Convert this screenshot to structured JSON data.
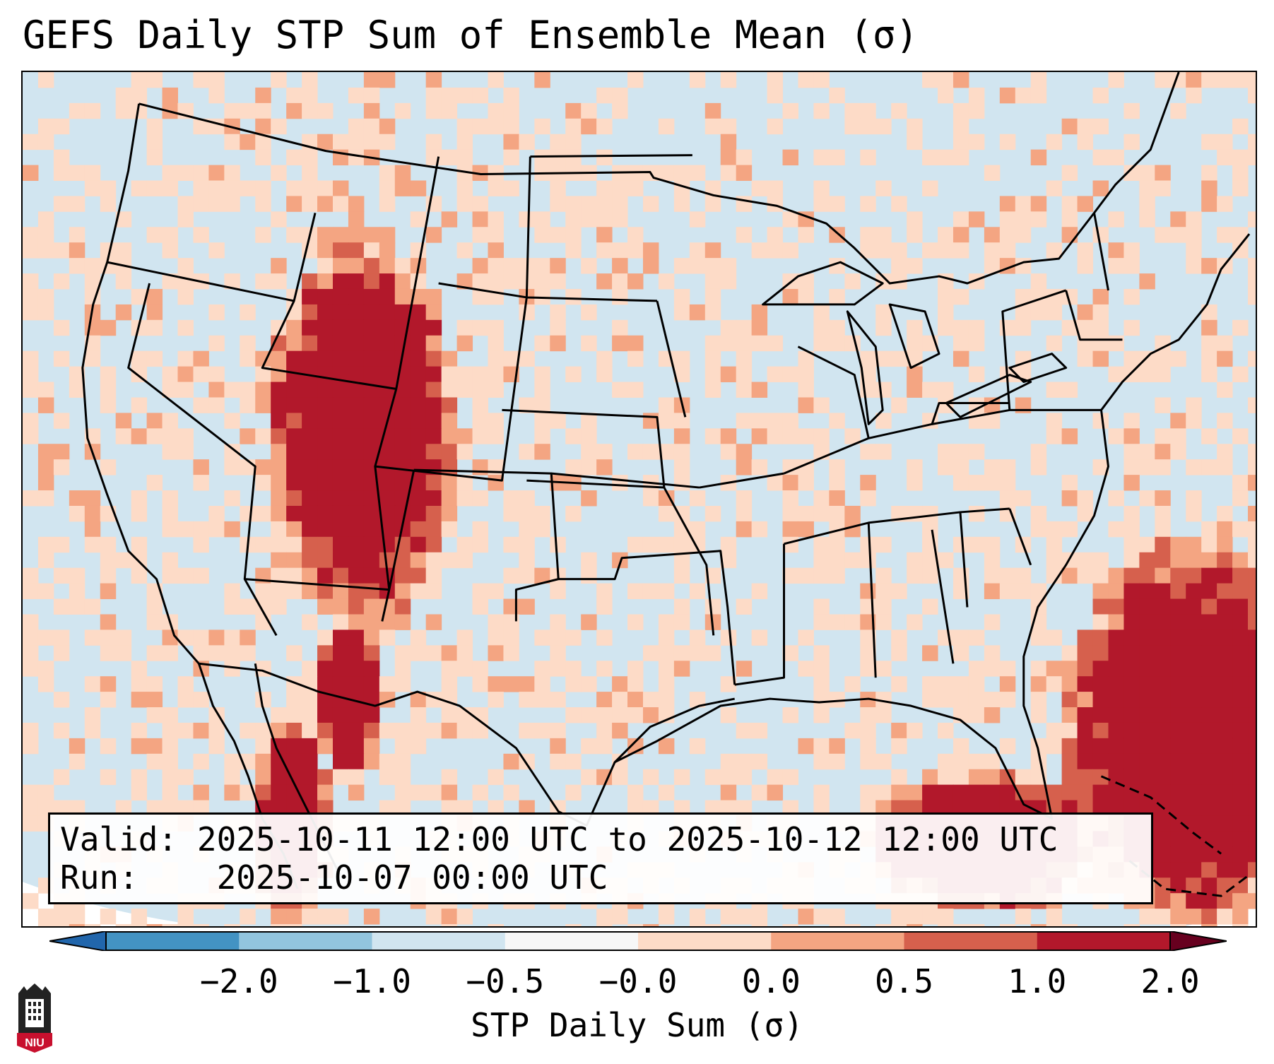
{
  "title": "GEFS Daily STP Sum of Ensemble Mean (σ)",
  "info": {
    "valid_label": "Valid:",
    "valid_text": "2025-10-11 12:00 UTC to 2025-10-12 12:00 UTC",
    "run_label": "Run:",
    "run_text": "2025-10-07 00:00 UTC"
  },
  "colorbar": {
    "label": "STP Daily Sum (σ)",
    "tick_labels": [
      "−2.0",
      "−1.0",
      "−0.5",
      "−0.0",
      "0.0",
      "0.5",
      "1.0",
      "2.0"
    ],
    "colors": [
      "#4393c3",
      "#92c5de",
      "#d1e5f0",
      "#f7f7f7",
      "#fddbc7",
      "#f4a582",
      "#d6604d",
      "#b2182b"
    ],
    "extend": "both"
  },
  "logo": {
    "text": "NIU"
  },
  "map": {
    "region": "Contiguous United States",
    "background_color": "#d1e5f0",
    "highlighted_areas": [
      "Intermountain West",
      "Baja California and Gulf of California",
      "Western Atlantic and Caribbean"
    ]
  }
}
